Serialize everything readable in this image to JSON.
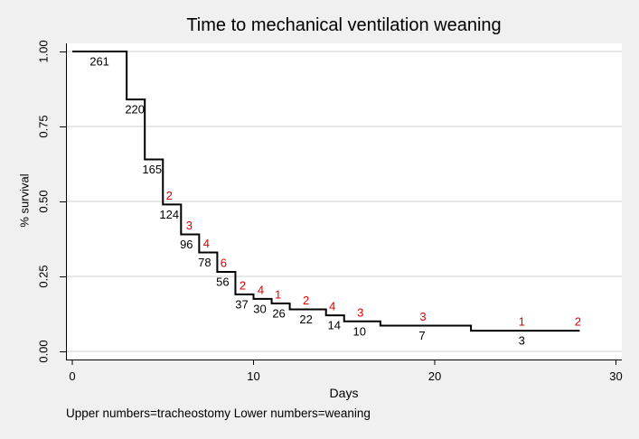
{
  "chart_data": {
    "type": "line",
    "variant": "kaplan-meier-step",
    "title": "Time to mechanical ventilation weaning",
    "xlabel": "Days",
    "ylabel": "% survival",
    "footnote": "Upper numbers=tracheostomy Lower numbers=weaning",
    "xlim": [
      0,
      30.6
    ],
    "ylim": [
      0,
      1
    ],
    "grid": "horizontal",
    "legend": "none",
    "xticks": [
      {
        "value": 0,
        "label": "0"
      },
      {
        "value": 10,
        "label": "10"
      },
      {
        "value": 20,
        "label": "20"
      },
      {
        "value": 30,
        "label": "30"
      }
    ],
    "yticks": [
      {
        "value": 0.0,
        "label": "0.00"
      },
      {
        "value": 0.25,
        "label": "0.25"
      },
      {
        "value": 0.5,
        "label": "0.50"
      },
      {
        "value": 0.75,
        "label": "0.75"
      },
      {
        "value": 1.0,
        "label": "1.00"
      }
    ],
    "colors": {
      "curve": "#000000",
      "axis": "#000000",
      "grid": "#e8e8e8",
      "plot_bg": "#ffffff",
      "page_bg": "#f0f0f0",
      "upper_numbers": "#dd0000",
      "lower_numbers": "#000000"
    },
    "step_days": [
      0,
      3,
      4,
      5,
      6,
      7,
      8,
      9,
      10,
      11,
      12,
      14,
      15,
      17,
      22,
      28
    ],
    "survival": [
      1.0,
      0.84,
      0.64,
      0.49,
      0.39,
      0.33,
      0.265,
      0.19,
      0.175,
      0.16,
      0.14,
      0.12,
      0.1,
      0.086,
      0.069
    ],
    "lower_labels": [
      {
        "day": 1.5,
        "n": "261"
      },
      {
        "day": 3.45,
        "n": "220"
      },
      {
        "day": 4.4,
        "n": "165"
      },
      {
        "day": 5.35,
        "n": "124"
      },
      {
        "day": 6.3,
        "n": "96"
      },
      {
        "day": 7.3,
        "n": "78"
      },
      {
        "day": 8.3,
        "n": "56"
      },
      {
        "day": 9.35,
        "n": "37"
      },
      {
        "day": 10.35,
        "n": "30"
      },
      {
        "day": 11.4,
        "n": "26"
      },
      {
        "day": 12.9,
        "n": "22"
      },
      {
        "day": 14.45,
        "n": "14"
      },
      {
        "day": 15.85,
        "n": "10"
      },
      {
        "day": 19.3,
        "n": "7"
      },
      {
        "day": 24.8,
        "n": "3"
      }
    ],
    "upper_labels": [
      {
        "day": 5.35,
        "n": "2"
      },
      {
        "day": 6.45,
        "n": "3"
      },
      {
        "day": 7.4,
        "n": "4"
      },
      {
        "day": 8.35,
        "n": "6"
      },
      {
        "day": 9.4,
        "n": "2"
      },
      {
        "day": 10.4,
        "n": "4"
      },
      {
        "day": 11.35,
        "n": "1"
      },
      {
        "day": 12.9,
        "n": "2"
      },
      {
        "day": 14.35,
        "n": "4"
      },
      {
        "day": 15.9,
        "n": "3"
      },
      {
        "day": 19.35,
        "n": "3"
      },
      {
        "day": 24.8,
        "n": "1"
      },
      {
        "day": 27.9,
        "n": "2"
      }
    ]
  }
}
